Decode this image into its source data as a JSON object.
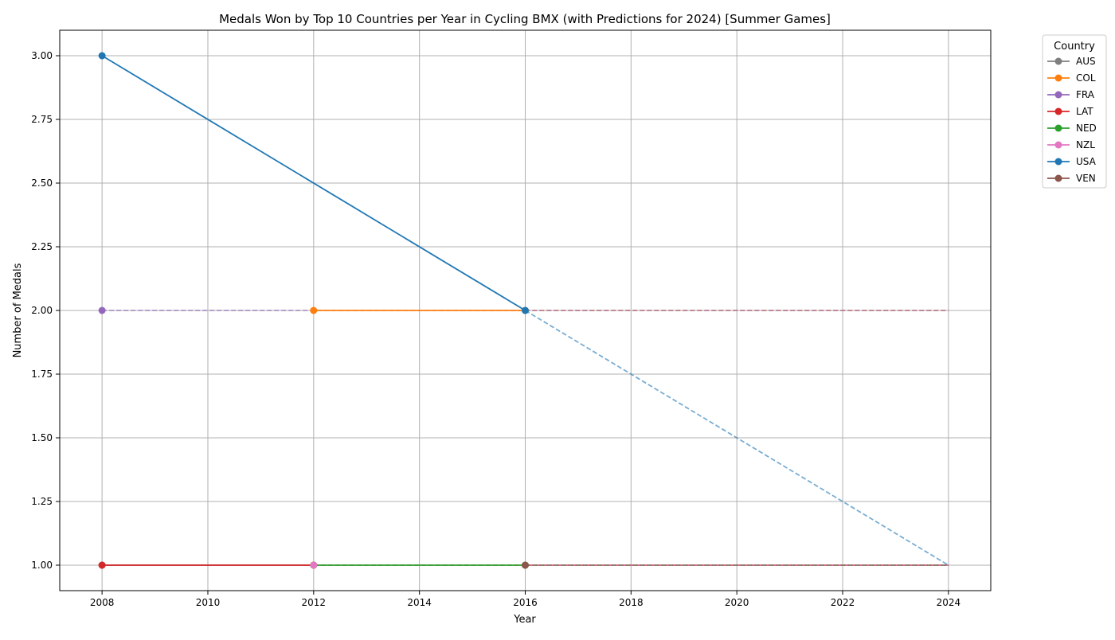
{
  "chart_data": {
    "type": "line",
    "title": "Medals Won by Top 10 Countries per Year in Cycling BMX (with Predictions for 2024) [Summer Games]",
    "xlabel": "Year",
    "ylabel": "Number of Medals",
    "xlim": [
      2007.2,
      2024.8
    ],
    "ylim": [
      0.9,
      3.1
    ],
    "xticks": [
      2008,
      2010,
      2012,
      2014,
      2016,
      2018,
      2020,
      2022,
      2024
    ],
    "yticks": [
      1.0,
      1.25,
      1.5,
      1.75,
      2.0,
      2.25,
      2.5,
      2.75,
      3.0
    ],
    "ytick_labels": [
      "1.00",
      "1.25",
      "1.50",
      "1.75",
      "2.00",
      "2.25",
      "2.50",
      "2.75",
      "3.00"
    ],
    "grid": true,
    "legend": {
      "title": "Country",
      "placement": "outside-top-right"
    },
    "series": [
      {
        "name": "AUS",
        "color": "#7f7f7f",
        "x": [
          2008,
          2012
        ],
        "y": [
          1,
          1
        ],
        "prediction": {
          "x": [
            2012,
            2024
          ],
          "y": [
            1,
            1
          ]
        }
      },
      {
        "name": "COL",
        "color": "#ff7f0e",
        "x": [
          2012,
          2016
        ],
        "y": [
          2,
          2
        ],
        "prediction": {
          "x": [
            2016,
            2024
          ],
          "y": [
            2,
            2
          ]
        }
      },
      {
        "name": "FRA",
        "color": "#9467bd",
        "x": [
          2008
        ],
        "y": [
          2
        ],
        "prediction": {
          "x": [
            2008,
            2024
          ],
          "y": [
            2,
            2
          ]
        }
      },
      {
        "name": "LAT",
        "color": "#d62728",
        "x": [
          2008,
          2012
        ],
        "y": [
          1,
          1
        ],
        "prediction": {
          "x": [
            2012,
            2024
          ],
          "y": [
            1,
            1
          ]
        }
      },
      {
        "name": "NED",
        "color": "#2ca02c",
        "x": [
          2012,
          2016
        ],
        "y": [
          1,
          1
        ],
        "prediction": {
          "x": [
            2016,
            2024
          ],
          "y": [
            1,
            1
          ]
        }
      },
      {
        "name": "NZL",
        "color": "#e377c2",
        "x": [
          2012
        ],
        "y": [
          1
        ],
        "prediction": {
          "x": [
            2012,
            2024
          ],
          "y": [
            1,
            1
          ]
        }
      },
      {
        "name": "USA",
        "color": "#1f77b4",
        "x": [
          2008,
          2016
        ],
        "y": [
          3,
          2
        ],
        "prediction": {
          "x": [
            2016,
            2024
          ],
          "y": [
            2,
            1
          ]
        }
      },
      {
        "name": "VEN",
        "color": "#8c564b",
        "x": [
          2016
        ],
        "y": [
          1
        ],
        "prediction": {
          "x": [
            2016,
            2024
          ],
          "y": [
            1,
            1
          ]
        }
      }
    ]
  }
}
